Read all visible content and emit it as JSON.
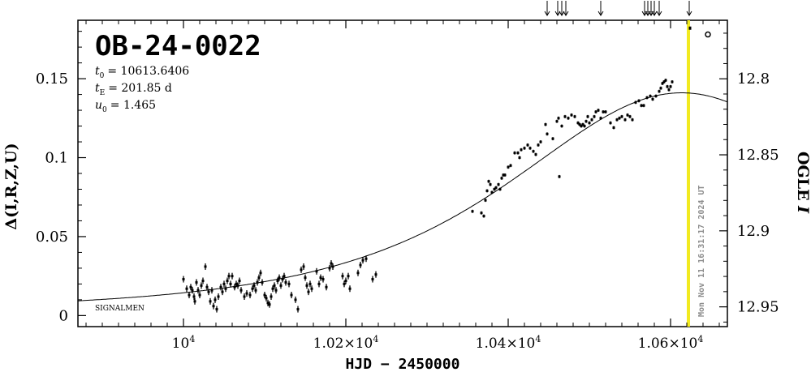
{
  "chart_data": {
    "type": "scatter",
    "title": "OB-24-0022",
    "params": [
      {
        "symbol": "t",
        "sub": "0",
        "value": "= 10613.6406"
      },
      {
        "symbol": "t",
        "sub": "E",
        "value": "= 201.85 d"
      },
      {
        "symbol": "u",
        "sub": "0",
        "value": "= 1.465"
      }
    ],
    "xlabel": "HJD − 2450000",
    "ylabel_left": "Δ(I,R,Z,U)",
    "ylabel_right_prefix": "OGLE ",
    "ylabel_right_italic": "I",
    "xlim": [
      9870,
      10670
    ],
    "ylim_left": [
      -0.007,
      0.187
    ],
    "ylim_right": [
      12.963,
      12.7615
    ],
    "x_ticks": [
      {
        "base": "10",
        "exp": "4",
        "prefix": "",
        "value": 10000
      },
      {
        "base": "10",
        "exp": "4",
        "prefix": "1.02×",
        "value": 10200
      },
      {
        "base": "10",
        "exp": "4",
        "prefix": "1.04×",
        "value": 10400
      },
      {
        "base": "10",
        "exp": "4",
        "prefix": "1.06×",
        "value": 10600
      }
    ],
    "y_ticks_left": [
      {
        "label": "0",
        "value": 0
      },
      {
        "label": "0.05",
        "value": 0.05
      },
      {
        "label": "0.1",
        "value": 0.1
      },
      {
        "label": "0.15",
        "value": 0.15
      }
    ],
    "y_ticks_right": [
      {
        "label": "12.8",
        "value": 12.8
      },
      {
        "label": "12.85",
        "value": 12.85
      },
      {
        "label": "12.9",
        "value": 12.9
      },
      {
        "label": "12.95",
        "value": 12.95
      }
    ],
    "model": {
      "t0": 10613.6406,
      "tE": 201.85,
      "u0": 1.465,
      "Fs": 1.0,
      "Ibase": 12.953
    },
    "current_time": {
      "x": 10622,
      "label": "Mon Nov 11 16:31:17 2024 UT",
      "color": "#f2ea1f"
    },
    "signalmen_label": "SIGNALMEN",
    "arrows_x": [
      10448,
      10461,
      10466,
      10471,
      10514,
      10568,
      10572,
      10576,
      10580,
      10586,
      10623
    ],
    "open_circle": {
      "x": 10646,
      "y": 0.178
    },
    "highlight_point": {
      "x": 10624,
      "y": 0.182
    },
    "series": [
      {
        "name": "",
        "points": [
          [
            10000,
            0.023
          ],
          [
            10004,
            0.017
          ],
          [
            10007,
            0.013
          ],
          [
            10009,
            0.018
          ],
          [
            10011,
            0.016
          ],
          [
            10013,
            0.012
          ],
          [
            10014,
            0.009
          ],
          [
            10016,
            0.021
          ],
          [
            10018,
            0.016
          ],
          [
            10020,
            0.013
          ],
          [
            10022,
            0.019
          ],
          [
            10024,
            0.022
          ],
          [
            10027,
            0.031
          ],
          [
            10029,
            0.018
          ],
          [
            10031,
            0.015
          ],
          [
            10033,
            0.009
          ],
          [
            10035,
            0.016
          ],
          [
            10037,
            0.006
          ],
          [
            10039,
            0.01
          ],
          [
            10041,
            0.004
          ],
          [
            10043,
            0.012
          ],
          [
            10046,
            0.018
          ],
          [
            10048,
            0.015
          ],
          [
            10050,
            0.02
          ],
          [
            10052,
            0.017
          ],
          [
            10054,
            0.022
          ],
          [
            10056,
            0.025
          ],
          [
            10058,
            0.02
          ],
          [
            10060,
            0.025
          ],
          [
            10063,
            0.018
          ],
          [
            10065,
            0.02
          ],
          [
            10067,
            0.019
          ],
          [
            10069,
            0.022
          ],
          [
            10071,
            0.016
          ],
          [
            10075,
            0.012
          ],
          [
            10078,
            0.014
          ],
          [
            10082,
            0.013
          ],
          [
            10085,
            0.017
          ],
          [
            10087,
            0.019
          ],
          [
            10089,
            0.016
          ],
          [
            10091,
            0.021
          ],
          [
            10093,
            0.024
          ],
          [
            10095,
            0.027
          ],
          [
            10097,
            0.021
          ],
          [
            10100,
            0.013
          ],
          [
            10102,
            0.011
          ],
          [
            10104,
            0.008
          ],
          [
            10106,
            0.007
          ],
          [
            10108,
            0.012
          ],
          [
            10110,
            0.017
          ],
          [
            10112,
            0.019
          ],
          [
            10114,
            0.016
          ],
          [
            10116,
            0.022
          ],
          [
            10118,
            0.024
          ],
          [
            10120,
            0.019
          ],
          [
            10122,
            0.023
          ],
          [
            10124,
            0.025
          ],
          [
            10126,
            0.021
          ],
          [
            10130,
            0.02
          ],
          [
            10133,
            0.013
          ],
          [
            10138,
            0.01
          ],
          [
            10141,
            0.004
          ],
          [
            10145,
            0.029
          ],
          [
            10148,
            0.031
          ],
          [
            10150,
            0.024
          ],
          [
            10152,
            0.019
          ],
          [
            10154,
            0.015
          ],
          [
            10156,
            0.02
          ],
          [
            10158,
            0.017
          ],
          [
            10164,
            0.028
          ],
          [
            10167,
            0.02
          ],
          [
            10169,
            0.024
          ],
          [
            10172,
            0.023
          ],
          [
            10176,
            0.018
          ],
          [
            10180,
            0.03
          ],
          [
            10182,
            0.033
          ],
          [
            10184,
            0.031
          ],
          [
            10196,
            0.025
          ],
          [
            10198,
            0.02
          ],
          [
            10200,
            0.022
          ],
          [
            10203,
            0.025
          ],
          [
            10205,
            0.017
          ],
          [
            10215,
            0.027
          ],
          [
            10218,
            0.032
          ],
          [
            10221,
            0.035
          ],
          [
            10225,
            0.036
          ],
          [
            10233,
            0.023
          ],
          [
            10237,
            0.026
          ],
          [
            10356,
            0.066
          ],
          [
            10367,
            0.065
          ],
          [
            10370,
            0.063
          ],
          [
            10372,
            0.073
          ],
          [
            10374,
            0.079
          ],
          [
            10376,
            0.085
          ],
          [
            10378,
            0.083
          ],
          [
            10380,
            0.078
          ],
          [
            10383,
            0.08
          ],
          [
            10385,
            0.081
          ],
          [
            10388,
            0.083
          ],
          [
            10390,
            0.08
          ],
          [
            10392,
            0.087
          ],
          [
            10394,
            0.089
          ],
          [
            10396,
            0.089
          ],
          [
            10400,
            0.094
          ],
          [
            10403,
            0.095
          ],
          [
            10408,
            0.103
          ],
          [
            10412,
            0.103
          ],
          [
            10414,
            0.1
          ],
          [
            10416,
            0.105
          ],
          [
            10420,
            0.106
          ],
          [
            10424,
            0.108
          ],
          [
            10427,
            0.106
          ],
          [
            10431,
            0.104
          ],
          [
            10434,
            0.102
          ],
          [
            10437,
            0.108
          ],
          [
            10440,
            0.11
          ],
          [
            10446,
            0.121
          ],
          [
            10448,
            0.115
          ],
          [
            10455,
            0.112
          ],
          [
            10460,
            0.123
          ],
          [
            10462,
            0.125
          ],
          [
            10466,
            0.12
          ],
          [
            10470,
            0.126
          ],
          [
            10474,
            0.125
          ],
          [
            10478,
            0.127
          ],
          [
            10482,
            0.126
          ],
          [
            10486,
            0.122
          ],
          [
            10488,
            0.121
          ],
          [
            10490,
            0.12
          ],
          [
            10492,
            0.121
          ],
          [
            10494,
            0.12
          ],
          [
            10496,
            0.123
          ],
          [
            10498,
            0.126
          ],
          [
            10500,
            0.122
          ],
          [
            10503,
            0.124
          ],
          [
            10506,
            0.126
          ],
          [
            10508,
            0.129
          ],
          [
            10511,
            0.13
          ],
          [
            10514,
            0.125
          ],
          [
            10517,
            0.129
          ],
          [
            10520,
            0.129
          ],
          [
            10526,
            0.122
          ],
          [
            10530,
            0.119
          ],
          [
            10534,
            0.124
          ],
          [
            10537,
            0.125
          ],
          [
            10540,
            0.126
          ],
          [
            10544,
            0.124
          ],
          [
            10547,
            0.127
          ],
          [
            10550,
            0.126
          ],
          [
            10553,
            0.124
          ],
          [
            10557,
            0.135
          ],
          [
            10561,
            0.136
          ],
          [
            10564,
            0.133
          ],
          [
            10567,
            0.133
          ],
          [
            10571,
            0.138
          ],
          [
            10575,
            0.139
          ],
          [
            10578,
            0.137
          ],
          [
            10582,
            0.139
          ],
          [
            10586,
            0.142
          ],
          [
            10588,
            0.144
          ],
          [
            10590,
            0.147
          ],
          [
            10592,
            0.148
          ],
          [
            10594,
            0.149
          ],
          [
            10596,
            0.145
          ],
          [
            10598,
            0.143
          ],
          [
            10600,
            0.145
          ],
          [
            10602,
            0.148
          ],
          [
            10463,
            0.088
          ]
        ]
      }
    ]
  }
}
